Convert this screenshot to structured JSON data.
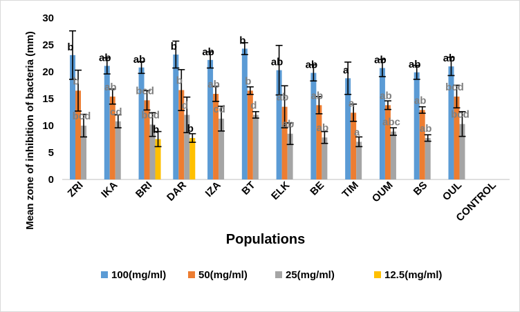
{
  "chart_data": {
    "type": "bar",
    "title": "",
    "xlabel": "Populations",
    "ylabel": "Mean zone of inhibition of bacteria (mm)",
    "ylim": [
      0,
      30
    ],
    "yticks": [
      0,
      5,
      10,
      15,
      20,
      25,
      30
    ],
    "grid": false,
    "legend_position": "bottom",
    "categories": [
      "ZRI",
      "IKA",
      "BRI",
      "DAR",
      "IZA",
      "BT",
      "ELK",
      "BE",
      "TIM",
      "OUM",
      "BS",
      "OUL",
      "CONTROL"
    ],
    "series": [
      {
        "name": "100(mg/ml)",
        "color": "#5b9bd5",
        "values": [
          23.1,
          21.1,
          20.8,
          23.2,
          22.2,
          24.3,
          20.3,
          19.8,
          18.8,
          20.7,
          19.9,
          21.0,
          0
        ],
        "errors": [
          4.5,
          1.5,
          1.1,
          2.5,
          1.5,
          1.1,
          4.6,
          1.5,
          3.0,
          1.6,
          1.3,
          1.7,
          0
        ],
        "labels": [
          "b",
          "ab",
          "ab",
          "b",
          "ab",
          "b",
          "ab",
          "ab",
          "a",
          "ab",
          "ab",
          "ab",
          ""
        ]
      },
      {
        "name": "50(mg/ml)",
        "color": "#ed7d31",
        "values": [
          16.5,
          15.4,
          14.7,
          16.6,
          15.9,
          16.5,
          13.5,
          13.8,
          12.4,
          13.8,
          12.9,
          15.4,
          0
        ],
        "errors": [
          3.8,
          1.4,
          1.8,
          3.8,
          1.4,
          0.7,
          3.9,
          1.6,
          1.6,
          0.8,
          0.6,
          2.1,
          0
        ],
        "labels": [
          "b",
          "ab",
          "bcd",
          "b",
          "ab",
          "b",
          "ab",
          "ab",
          "a",
          "ab",
          "ab",
          "bcd",
          ""
        ]
      },
      {
        "name": "25(mg/ml)",
        "color": "#a5a5a5",
        "values": [
          10.0,
          10.8,
          10.2,
          12.0,
          11.3,
          12.0,
          8.5,
          7.8,
          7.0,
          8.9,
          7.7,
          10.3,
          0
        ],
        "errors": [
          2.1,
          1.2,
          2.2,
          3.3,
          2.3,
          0.6,
          2.0,
          1.1,
          0.9,
          0.7,
          0.6,
          2.3,
          0
        ],
        "labels": [
          "bcd",
          "cd",
          "bcd",
          "d",
          "cd",
          "d",
          "ab",
          "ab",
          "a",
          "abc",
          "ab",
          "bcd",
          ""
        ]
      },
      {
        "name": "12.5(mg/ml)",
        "color": "#ffc000",
        "values": [
          0,
          0,
          7.5,
          7.7,
          0,
          0,
          0,
          0,
          0,
          0,
          0,
          0,
          0
        ],
        "errors": [
          0,
          0,
          1.4,
          0.8,
          0,
          0,
          0,
          0,
          0,
          0,
          0,
          0,
          0
        ],
        "labels": [
          "",
          "",
          "b",
          "b",
          "",
          "",
          "",
          "",
          "",
          "",
          "",
          "",
          ""
        ]
      }
    ]
  }
}
